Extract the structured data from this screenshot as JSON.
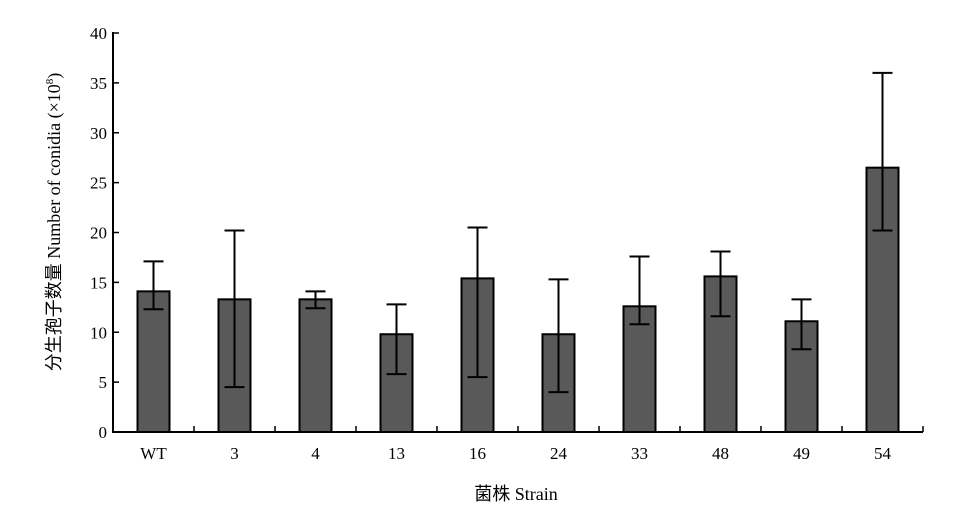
{
  "chart_data": {
    "type": "bar",
    "title": "",
    "xlabel": "菌株 Strain",
    "ylabel": "分生孢子数量 Number of conidia (×10",
    "ylabel_exponent": "8",
    "ylabel_close": ")",
    "categories": [
      "WT",
      "3",
      "4",
      "13",
      "16",
      "24",
      "33",
      "48",
      "49",
      "54"
    ],
    "values": [
      14.1,
      13.3,
      13.3,
      9.8,
      15.4,
      9.8,
      12.6,
      15.6,
      11.1,
      26.5
    ],
    "error_low": [
      12.3,
      4.5,
      12.4,
      5.8,
      5.5,
      4.0,
      10.8,
      11.6,
      8.3,
      20.2
    ],
    "error_high": [
      17.1,
      20.2,
      14.1,
      12.8,
      20.5,
      15.3,
      17.6,
      18.1,
      13.3,
      36.0
    ],
    "ylim": [
      0,
      40
    ],
    "yticks": [
      0,
      5,
      10,
      15,
      20,
      25,
      30,
      35,
      40
    ],
    "bar_color": "#595959",
    "grid": false,
    "legend": "none"
  }
}
